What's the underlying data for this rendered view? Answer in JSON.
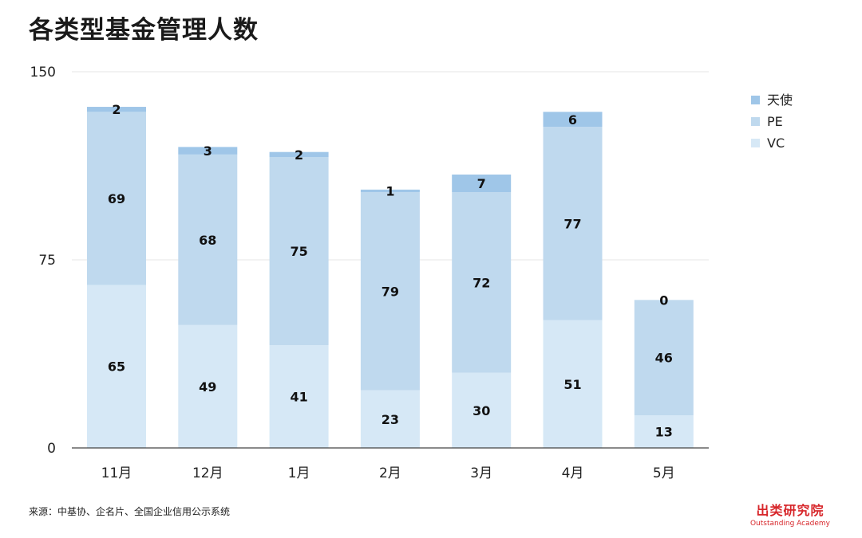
{
  "title": "各类型基金管理人数",
  "source": "来源：中基协、企名片、全国企业信用公示系统",
  "brand": {
    "cn": "出类研究院",
    "en": "Outstanding Academy"
  },
  "colors": {
    "VC": "#d6e8f6",
    "PE": "#bfd9ee",
    "天使": "#9fc6e8",
    "grid": "#e4e4e4",
    "axis": "#444444"
  },
  "chart_data": {
    "type": "bar",
    "stacked": true,
    "categories": [
      "11月",
      "12月",
      "1月",
      "2月",
      "3月",
      "4月",
      "5月"
    ],
    "series": [
      {
        "name": "VC",
        "values": [
          65,
          49,
          41,
          23,
          30,
          51,
          13
        ]
      },
      {
        "name": "PE",
        "values": [
          69,
          68,
          75,
          79,
          72,
          77,
          46
        ]
      },
      {
        "name": "天使",
        "values": [
          2,
          3,
          2,
          1,
          7,
          6,
          0
        ]
      }
    ],
    "legend_order": [
      "天使",
      "PE",
      "VC"
    ],
    "yticks": [
      0,
      75,
      150
    ],
    "ylim": [
      0,
      150
    ],
    "title": "各类型基金管理人数",
    "xlabel": "",
    "ylabel": "",
    "grid": true,
    "legend_position": "top-right"
  }
}
